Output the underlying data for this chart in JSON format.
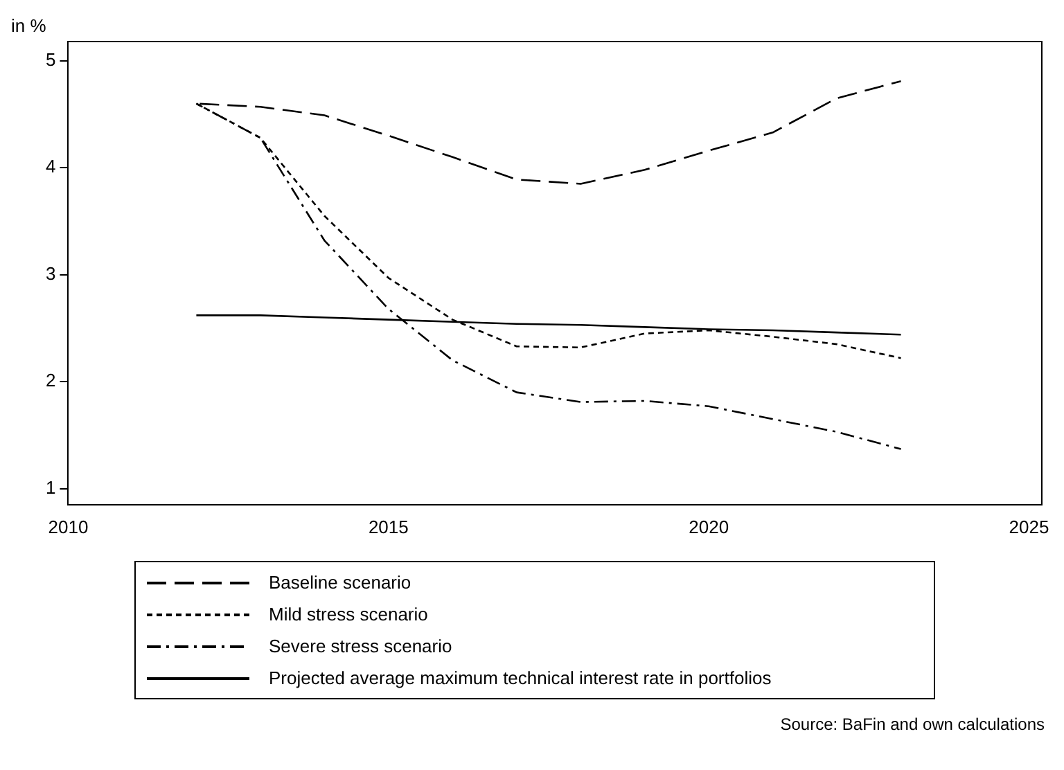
{
  "chart_data": {
    "type": "line",
    "ylabel": "in %",
    "x": [
      2012,
      2013,
      2014,
      2015,
      2016,
      2017,
      2018,
      2019,
      2020,
      2021,
      2022,
      2023
    ],
    "series": [
      {
        "name": "Baseline scenario",
        "color": "#000000",
        "line_style": "dashed",
        "values": [
          4.6,
          4.57,
          4.49,
          4.3,
          4.1,
          3.89,
          3.85,
          3.98,
          4.16,
          4.33,
          4.65,
          4.81
        ]
      },
      {
        "name": "Mild stress scenario",
        "color": "#000000",
        "line_style": "dotted",
        "values": [
          4.6,
          4.28,
          3.55,
          2.97,
          2.58,
          2.33,
          2.32,
          2.45,
          2.48,
          2.42,
          2.35,
          2.22
        ]
      },
      {
        "name": "Severe stress scenario",
        "color": "#000000",
        "line_style": "dashdot",
        "values": [
          4.6,
          4.28,
          3.32,
          2.68,
          2.2,
          1.9,
          1.81,
          1.82,
          1.77,
          1.65,
          1.53,
          1.37
        ]
      },
      {
        "name": "Projected average maximum technical interest rate in portfolios",
        "color": "#000000",
        "line_style": "solid",
        "values": [
          2.62,
          2.62,
          2.6,
          2.58,
          2.56,
          2.54,
          2.53,
          2.51,
          2.49,
          2.48,
          2.46,
          2.44
        ]
      }
    ],
    "xlim": [
      2010,
      2025.2
    ],
    "xticks": [
      2010,
      2015,
      2020,
      2025
    ],
    "ylim": [
      0.85,
      5.18
    ],
    "yticks": [
      1,
      2,
      3,
      4,
      5
    ],
    "grid": false,
    "legend": "bottom",
    "marker": "none",
    "annotations": [
      "Source: BaFin and own calculations"
    ]
  }
}
